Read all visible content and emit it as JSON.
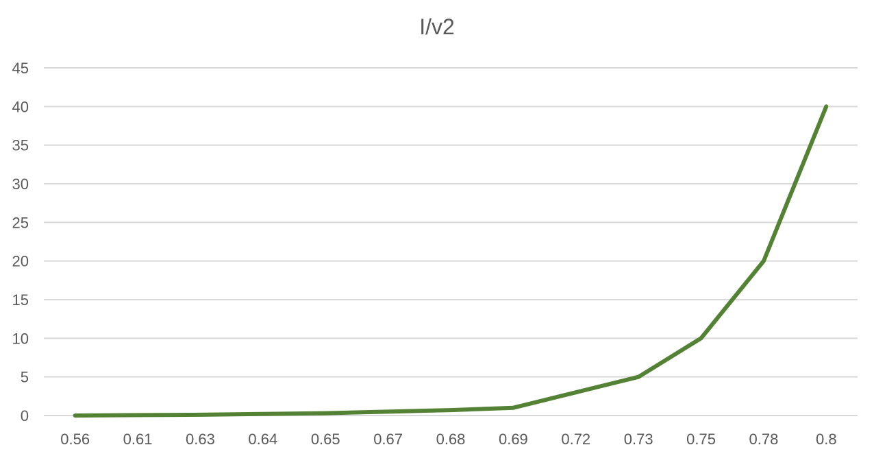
{
  "chart_data": {
    "type": "line",
    "title": "I/v2",
    "xlabel": "",
    "ylabel": "",
    "categories": [
      "0.56",
      "0.61",
      "0.63",
      "0.64",
      "0.65",
      "0.67",
      "0.68",
      "0.69",
      "0.72",
      "0.73",
      "0.75",
      "0.78",
      "0.8"
    ],
    "series": [
      {
        "values": [
          0,
          0.05,
          0.1,
          0.2,
          0.3,
          0.5,
          0.7,
          1,
          3,
          5,
          10,
          20,
          40
        ],
        "color": "#548235"
      }
    ],
    "ylim": [
      0,
      45
    ],
    "yticks": [
      "0",
      "5",
      "10",
      "15",
      "20",
      "25",
      "30",
      "35",
      "40",
      "45"
    ],
    "grid": true,
    "legend": "none"
  }
}
